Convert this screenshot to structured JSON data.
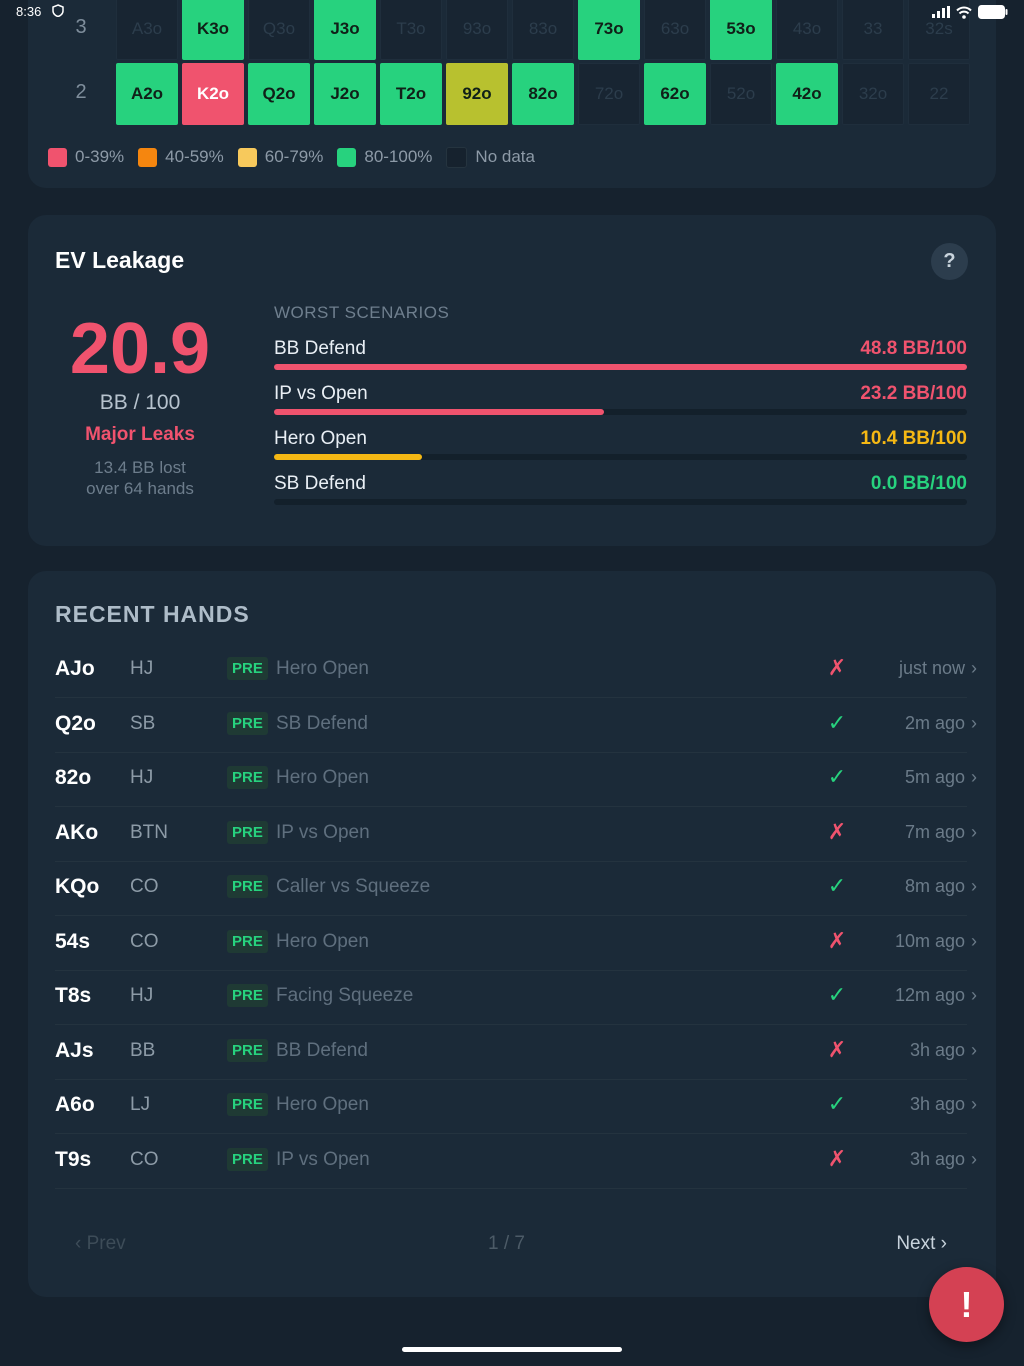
{
  "status": {
    "time": "8:36"
  },
  "grid": {
    "rows": [
      {
        "label": "3",
        "cells": [
          {
            "text": "A3o",
            "type": "none"
          },
          {
            "text": "K3o",
            "type": "green"
          },
          {
            "text": "Q3o",
            "type": "none"
          },
          {
            "text": "J3o",
            "type": "green"
          },
          {
            "text": "T3o",
            "type": "none"
          },
          {
            "text": "93o",
            "type": "none"
          },
          {
            "text": "83o",
            "type": "none"
          },
          {
            "text": "73o",
            "type": "green"
          },
          {
            "text": "63o",
            "type": "none"
          },
          {
            "text": "53o",
            "type": "green"
          },
          {
            "text": "43o",
            "type": "none"
          },
          {
            "text": "33",
            "type": "none"
          },
          {
            "text": "32s",
            "type": "none"
          }
        ]
      },
      {
        "label": "2",
        "cells": [
          {
            "text": "A2o",
            "type": "green"
          },
          {
            "text": "K2o",
            "type": "red"
          },
          {
            "text": "Q2o",
            "type": "green"
          },
          {
            "text": "J2o",
            "type": "green"
          },
          {
            "text": "T2o",
            "type": "green"
          },
          {
            "text": "92o",
            "type": "olive"
          },
          {
            "text": "82o",
            "type": "green"
          },
          {
            "text": "72o",
            "type": "none"
          },
          {
            "text": "62o",
            "type": "green"
          },
          {
            "text": "52o",
            "type": "none"
          },
          {
            "text": "42o",
            "type": "green"
          },
          {
            "text": "32o",
            "type": "none"
          },
          {
            "text": "22",
            "type": "none"
          }
        ]
      }
    ],
    "legend": [
      {
        "label": "0-39%",
        "color": "#f0536e"
      },
      {
        "label": "40-59%",
        "color": "#f5860f"
      },
      {
        "label": "60-79%",
        "color": "#f7c95c"
      },
      {
        "label": "80-100%",
        "color": "#27d27e"
      },
      {
        "label": "No data",
        "color": "#16222e"
      }
    ]
  },
  "ev": {
    "title": "EV Leakage",
    "help": "?",
    "value": "20.9",
    "unit": "BB / 100",
    "status": "Major Leaks",
    "sub1": "13.4 BB lost",
    "sub2": "over 64 hands",
    "scenarios_header": "WORST SCENARIOS",
    "scenarios": [
      {
        "name": "BB Defend",
        "value": "48.8 BB/100",
        "fraction": 1.0,
        "color": "#f0536e"
      },
      {
        "name": "IP vs Open",
        "value": "23.2 BB/100",
        "fraction": 0.476,
        "color": "#f0536e"
      },
      {
        "name": "Hero Open",
        "value": "10.4 BB/100",
        "fraction": 0.213,
        "color": "#f5b814"
      },
      {
        "name": "SB Defend",
        "value": "0.0 BB/100",
        "fraction": 0.0,
        "color": "#27d27e"
      }
    ]
  },
  "hands": {
    "title": "RECENT HANDS",
    "items": [
      {
        "hand": "AJo",
        "pos": "HJ",
        "street": "PRE",
        "scenario": "Hero Open",
        "result": "✗",
        "correct": false,
        "time": "just now"
      },
      {
        "hand": "Q2o",
        "pos": "SB",
        "street": "PRE",
        "scenario": "SB Defend",
        "result": "✓",
        "correct": true,
        "time": "2m ago"
      },
      {
        "hand": "82o",
        "pos": "HJ",
        "street": "PRE",
        "scenario": "Hero Open",
        "result": "✓",
        "correct": true,
        "time": "5m ago"
      },
      {
        "hand": "AKo",
        "pos": "BTN",
        "street": "PRE",
        "scenario": "IP vs Open",
        "result": "✗",
        "correct": false,
        "time": "7m ago"
      },
      {
        "hand": "KQo",
        "pos": "CO",
        "street": "PRE",
        "scenario": "Caller vs Squeeze",
        "result": "✓",
        "correct": true,
        "time": "8m ago"
      },
      {
        "hand": "54s",
        "pos": "CO",
        "street": "PRE",
        "scenario": "Hero Open",
        "result": "✗",
        "correct": false,
        "time": "10m ago"
      },
      {
        "hand": "T8s",
        "pos": "HJ",
        "street": "PRE",
        "scenario": "Facing Squeeze",
        "result": "✓",
        "correct": true,
        "time": "12m ago"
      },
      {
        "hand": "AJs",
        "pos": "BB",
        "street": "PRE",
        "scenario": "BB Defend",
        "result": "✗",
        "correct": false,
        "time": "3h ago"
      },
      {
        "hand": "A6o",
        "pos": "LJ",
        "street": "PRE",
        "scenario": "Hero Open",
        "result": "✓",
        "correct": true,
        "time": "3h ago"
      },
      {
        "hand": "T9s",
        "pos": "CO",
        "street": "PRE",
        "scenario": "IP vs Open",
        "result": "✗",
        "correct": false,
        "time": "3h ago"
      }
    ],
    "pager": {
      "prev": "‹ Prev",
      "page": "1 / 7",
      "next": "Next ›"
    }
  },
  "fab": {
    "label": "!"
  },
  "colors": {
    "good": "#27d27e",
    "bad": "#f0536e",
    "warn": "#f5b814"
  }
}
